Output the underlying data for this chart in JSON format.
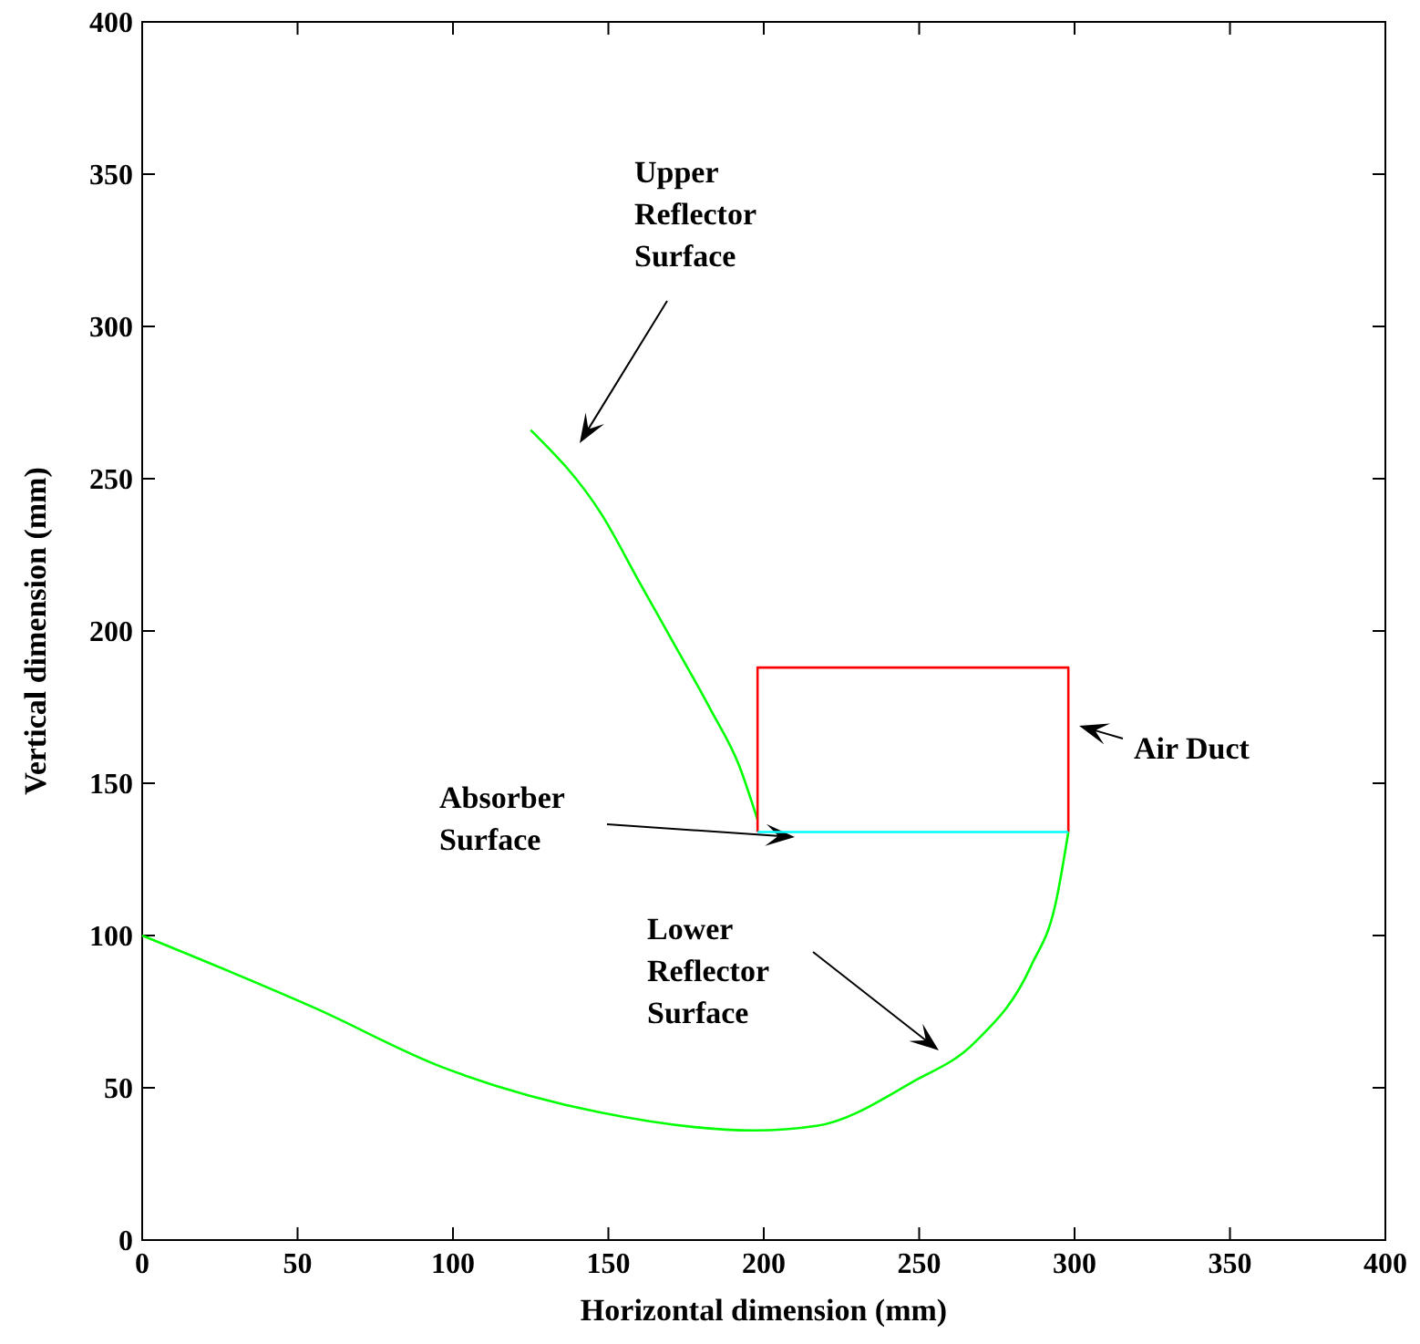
{
  "chart_data": {
    "type": "line",
    "xlabel": "Horizontal dimension (mm)",
    "ylabel": "Vertical dimension (mm)",
    "xlim": [
      0,
      400
    ],
    "ylim": [
      0,
      400
    ],
    "xticks": [
      0,
      50,
      100,
      150,
      200,
      250,
      300,
      350,
      400
    ],
    "yticks": [
      0,
      50,
      100,
      150,
      200,
      250,
      300,
      350,
      400
    ],
    "grid": false,
    "series": [
      {
        "color": "#00ff00",
        "x": [
          125,
          148,
          160,
          171,
          183,
          192,
          198
        ],
        "values": [
          266,
          238,
          216,
          196,
          174,
          156,
          138
        ]
      },
      {
        "color": "#00ff00",
        "x": [
          0,
          56,
          96,
          147,
          197,
          217,
          248,
          268,
          286,
          294,
          298
        ],
        "values": [
          100,
          76,
          57,
          42,
          36,
          37.5,
          52,
          65,
          90,
          111,
          134
        ]
      },
      {
        "color": "#ff0000",
        "x": [
          198,
          198,
          298,
          298
        ],
        "values": [
          134,
          188,
          188,
          134
        ]
      },
      {
        "color": "#00ffff",
        "x": [
          198,
          298
        ],
        "values": [
          134,
          134
        ]
      }
    ],
    "annotations": [
      "Upper Reflector Surface",
      "Air Duct",
      "Absorber Surface",
      "Lower Reflector Surface"
    ]
  }
}
